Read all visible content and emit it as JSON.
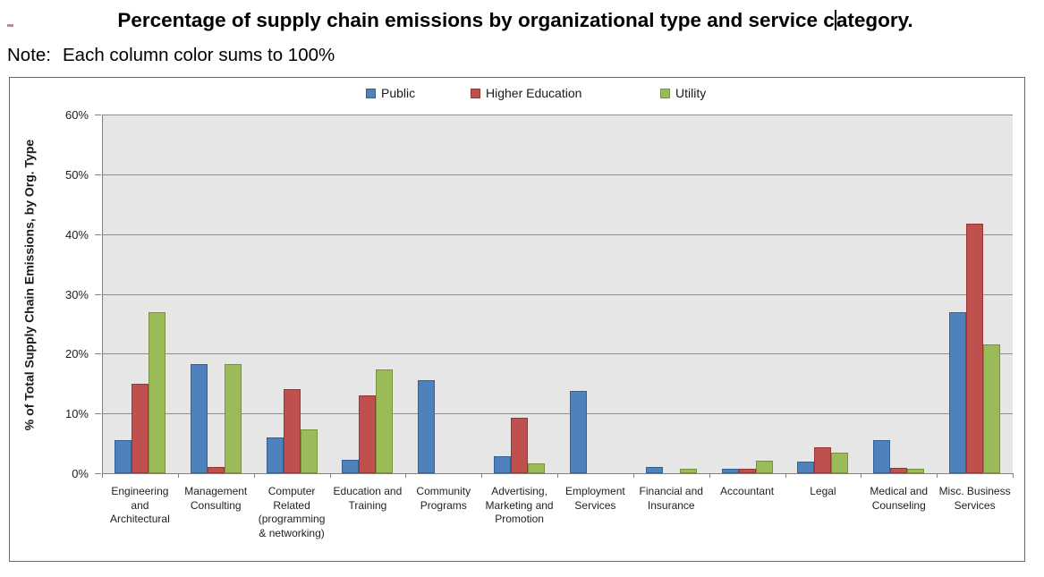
{
  "title": {
    "before_caret": "Percentage of supply chain emissions by organizational type and service c",
    "after_caret": "ategory."
  },
  "note": {
    "label": "Note:",
    "text": "Each column color sums to 100%"
  },
  "colors": {
    "plot_background": "#e6e6e6",
    "gridline": "#8e8e8e",
    "axis": "#808080",
    "chart_border": "#6a6a6a"
  },
  "chart_data": {
    "type": "bar",
    "title": "Percentage of supply chain emissions by organizational type and service category.",
    "ylabel": "% of Total Supply Chain Emissions, by Org. Type",
    "ylim": [
      0,
      60
    ],
    "yticks": [
      "0%",
      "10%",
      "20%",
      "30%",
      "40%",
      "50%",
      "60%"
    ],
    "grid": true,
    "legend_position": "top",
    "categories": [
      "Engineering and Architectural",
      "Management Consulting",
      "Computer Related (programming & networking)",
      "Education and Training",
      "Community Programs",
      "Advertising, Marketing and Promotion",
      "Employment Services",
      "Financial and Insurance",
      "Accountant",
      "Legal",
      "Medical and Counseling",
      "Misc. Business Services"
    ],
    "category_labels": [
      "Engineering\nand\nArchitectural",
      "Management\nConsulting",
      "Computer\nRelated\n(programming\n& networking)",
      "Education and\nTraining",
      "Community\nPrograms",
      "Advertising,\nMarketing and\nPromotion",
      "Employment\nServices",
      "Financial and\nInsurance",
      "Accountant",
      "Legal",
      "Medical and\nCounseling",
      "Misc. Business\nServices"
    ],
    "series": [
      {
        "name": "Public",
        "color": "#4f81bd",
        "border_color": "#366092",
        "values": [
          5.5,
          18.3,
          6.0,
          2.2,
          15.6,
          2.9,
          13.7,
          1.0,
          0.7,
          1.9,
          5.5,
          27.0
        ]
      },
      {
        "name": "Higher Education",
        "color": "#c0504d",
        "border_color": "#953735",
        "values": [
          15.0,
          1.1,
          14.0,
          13.0,
          0,
          9.3,
          0,
          0,
          0.7,
          4.3,
          0.9,
          41.8
        ]
      },
      {
        "name": "Utility",
        "color": "#9bbb59",
        "border_color": "#76923c",
        "values": [
          27.0,
          18.2,
          7.3,
          17.3,
          0,
          1.7,
          0,
          0.7,
          2.1,
          3.4,
          0.8,
          21.5
        ]
      }
    ]
  }
}
